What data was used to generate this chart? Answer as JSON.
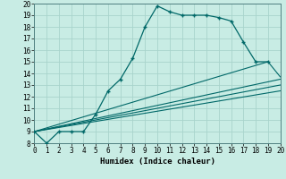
{
  "xlabel": "Humidex (Indice chaleur)",
  "xlim": [
    0,
    20
  ],
  "ylim": [
    8,
    20
  ],
  "xticks": [
    0,
    1,
    2,
    3,
    4,
    5,
    6,
    7,
    8,
    9,
    10,
    11,
    12,
    13,
    14,
    15,
    16,
    17,
    18,
    19,
    20
  ],
  "yticks": [
    8,
    9,
    10,
    11,
    12,
    13,
    14,
    15,
    16,
    17,
    18,
    19,
    20
  ],
  "bg_color": "#c8ece4",
  "grid_color": "#a8d4cc",
  "line_color": "#006868",
  "line1_x": [
    0,
    1,
    2,
    3,
    4,
    5,
    6,
    7,
    8,
    9,
    10,
    11,
    12,
    13,
    14,
    15,
    16,
    17,
    18,
    19
  ],
  "line1_y": [
    9.0,
    8.0,
    9.0,
    9.0,
    9.0,
    10.5,
    12.5,
    13.5,
    15.3,
    18.0,
    19.8,
    19.3,
    19.0,
    19.0,
    19.0,
    18.8,
    18.5,
    16.7,
    15.0,
    15.0
  ],
  "line2_x": [
    0,
    19,
    20
  ],
  "line2_y": [
    9.0,
    15.0,
    13.7
  ],
  "line3_x": [
    0,
    20
  ],
  "line3_y": [
    9.0,
    13.5
  ],
  "line4_x": [
    0,
    20
  ],
  "line4_y": [
    9.0,
    13.0
  ],
  "line5_x": [
    0,
    20
  ],
  "line5_y": [
    9.0,
    12.5
  ]
}
